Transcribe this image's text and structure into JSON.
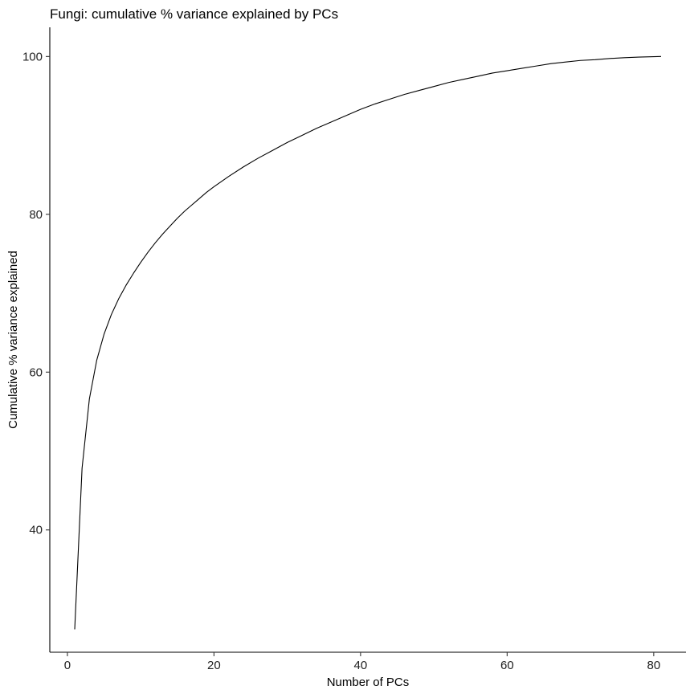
{
  "chart_data": {
    "type": "line",
    "title": "Fungi: cumulative % variance explained by PCs",
    "xlabel": "Number of PCs",
    "ylabel": "Cumulative % variance explained",
    "xlim": [
      -2.4,
      84.4
    ],
    "ylim": [
      24.5,
      103.7
    ],
    "xticks": [
      0,
      20,
      40,
      60,
      80
    ],
    "yticks": [
      40,
      60,
      80,
      100
    ],
    "grid": false,
    "legend": "none",
    "line_color": "#000000",
    "series": [
      {
        "x": [
          1,
          2,
          3,
          4,
          5,
          6,
          7,
          8,
          9,
          10,
          11,
          12,
          13,
          14,
          15,
          16,
          17,
          18,
          19,
          20,
          22,
          24,
          26,
          28,
          30,
          32,
          34,
          36,
          38,
          40,
          42,
          44,
          46,
          48,
          50,
          52,
          54,
          56,
          58,
          60,
          62,
          64,
          66,
          68,
          70,
          72,
          74,
          76,
          78,
          80,
          81
        ],
        "y": [
          27.4,
          47.8,
          56.6,
          61.5,
          64.8,
          67.3,
          69.3,
          71.0,
          72.5,
          73.9,
          75.2,
          76.4,
          77.5,
          78.5,
          79.5,
          80.4,
          81.2,
          82.0,
          82.8,
          83.5,
          84.8,
          86.0,
          87.1,
          88.1,
          89.1,
          90.0,
          90.9,
          91.7,
          92.5,
          93.3,
          94.0,
          94.6,
          95.2,
          95.7,
          96.2,
          96.7,
          97.1,
          97.5,
          97.9,
          98.2,
          98.5,
          98.8,
          99.1,
          99.3,
          99.5,
          99.6,
          99.75,
          99.85,
          99.93,
          99.98,
          100.0
        ]
      }
    ]
  }
}
